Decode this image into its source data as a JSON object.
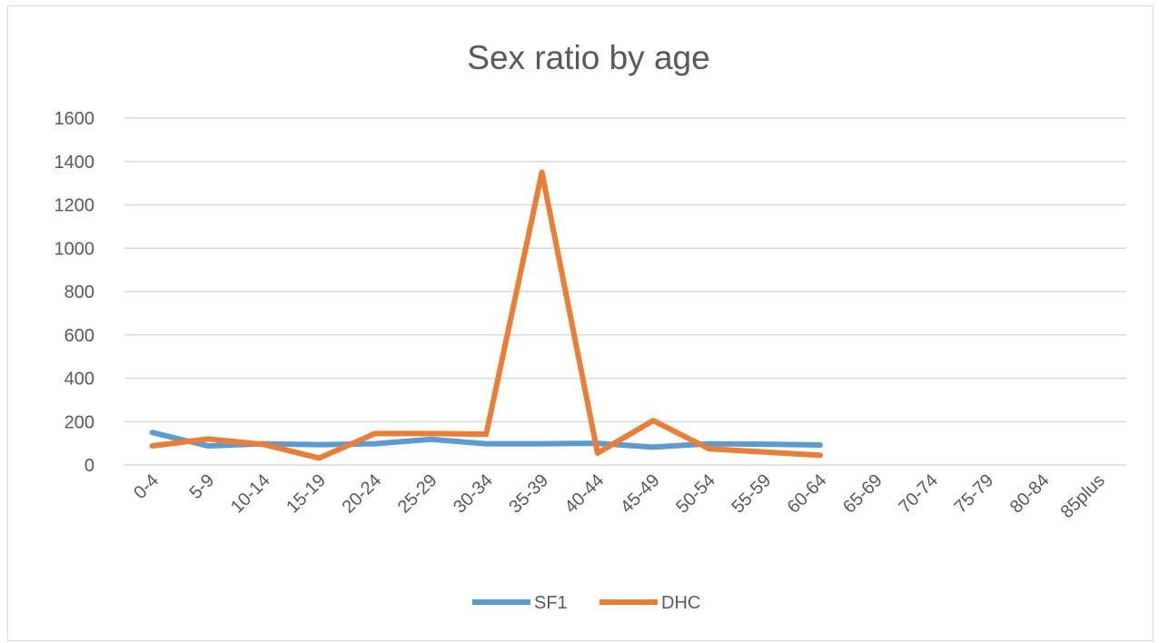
{
  "chart_data": {
    "type": "line",
    "title": "Sex ratio by age",
    "categories": [
      "0-4",
      "5-9",
      "10-14",
      "15-19",
      "20-24",
      "25-29",
      "30-34",
      "35-39",
      "40-44",
      "45-49",
      "50-54",
      "55-59",
      "60-64",
      "65-69",
      "70-74",
      "75-79",
      "80-84",
      "85plus"
    ],
    "ylim": [
      0,
      1600
    ],
    "yticks": [
      "0",
      "200",
      "400",
      "600",
      "800",
      "1000",
      "1200",
      "1400",
      "1600"
    ],
    "grid": true,
    "legend_position": "bottom",
    "series": [
      {
        "name": "SF1",
        "color": "#5b9bd5",
        "values": [
          150,
          88,
          98,
          94,
          98,
          118,
          98,
          98,
          100,
          82,
          98,
          96,
          92,
          null,
          null,
          null,
          null,
          null
        ]
      },
      {
        "name": "DHC",
        "color": "#ed7d31",
        "values": [
          88,
          120,
          95,
          32,
          145,
          145,
          142,
          1350,
          55,
          205,
          75,
          60,
          45,
          null,
          null,
          null,
          null,
          null
        ]
      }
    ]
  }
}
